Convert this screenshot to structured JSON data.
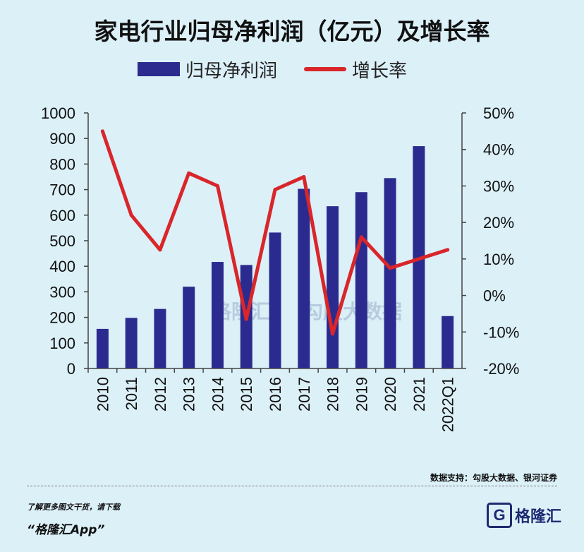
{
  "page": {
    "title": "家电行业归母净利润（亿元）及增长率",
    "source": "数据支持：勾股大数据、银河证券",
    "promo": "了解更多图文干货，请下载",
    "app_name": "“格隆汇App”",
    "logo_text": "格隆汇",
    "logo_letter": "G",
    "watermark1": "格隆汇",
    "watermark2": "勾股大数据"
  },
  "colors": {
    "bar": "#2b2b8f",
    "line": "#d9262a",
    "background": "#dcf0f8"
  },
  "chart_data": {
    "type": "bar",
    "title": "家电行业归母净利润（亿元）及增长率",
    "categories": [
      "2010",
      "2011",
      "2012",
      "2013",
      "2014",
      "2015",
      "2016",
      "2017",
      "2018",
      "2019",
      "2020",
      "2021",
      "2022Q1"
    ],
    "series": [
      {
        "name": "归母净利润",
        "type": "bar",
        "axis": "left",
        "values": [
          155,
          198,
          233,
          320,
          417,
          405,
          532,
          703,
          635,
          690,
          745,
          870,
          205
        ]
      },
      {
        "name": "增长率",
        "type": "line",
        "axis": "right",
        "unit": "%",
        "values": [
          45,
          22,
          12.5,
          33.5,
          30,
          -6.5,
          29,
          32.5,
          -10.5,
          16,
          7.5,
          null,
          12.5
        ]
      }
    ],
    "y_left": {
      "ylim": [
        0,
        1000
      ],
      "ticks": [
        "0",
        "100",
        "200",
        "300",
        "400",
        "500",
        "600",
        "700",
        "800",
        "900",
        "1000"
      ]
    },
    "y_right": {
      "ylim": [
        -20,
        50
      ],
      "ticks": [
        "-20%",
        "-10%",
        "0%",
        "10%",
        "20%",
        "30%",
        "40%",
        "50%"
      ]
    },
    "legend": "top",
    "grid": false
  }
}
